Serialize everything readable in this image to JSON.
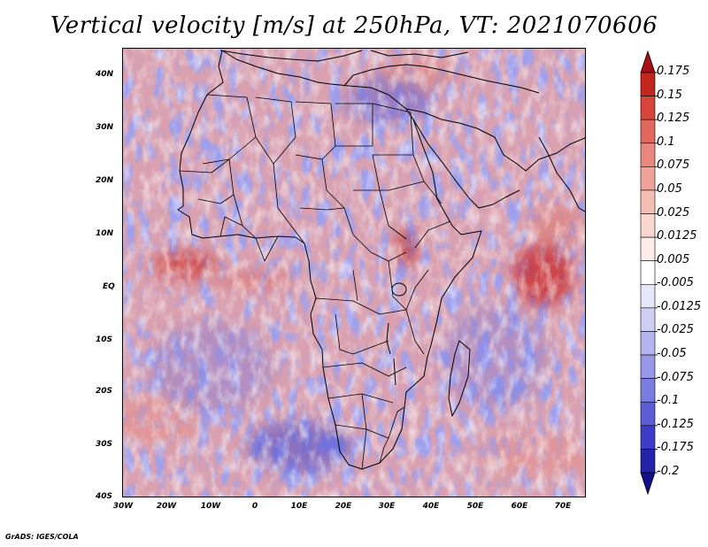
{
  "title": "Vertical velocity [m/s] at 250hPa, VT: 2021070606",
  "credit": "GrADS: IGES/COLA",
  "lat_labels": [
    "40N",
    "30N",
    "20N",
    "10N",
    "EQ",
    "10S",
    "20S",
    "30S",
    "40S"
  ],
  "lon_labels": [
    "30W",
    "20W",
    "10W",
    "0",
    "10E",
    "20E",
    "30E",
    "40E",
    "50E",
    "60E",
    "70E"
  ],
  "colorbar": {
    "levels": [
      "0.175",
      "0.15",
      "0.125",
      "0.1",
      "0.075",
      "0.05",
      "0.025",
      "0.0125",
      "0.005",
      "-0.005",
      "-0.0125",
      "-0.025",
      "-0.05",
      "-0.075",
      "-0.1",
      "-0.125",
      "-0.175",
      "-0.2"
    ],
    "colors": [
      "#a50f15",
      "#c2261d",
      "#d6453a",
      "#e1685e",
      "#e8887f",
      "#efa39b",
      "#f4bdb6",
      "#f8d6d1",
      "#fcecea",
      "#ffffff",
      "#e7e7fb",
      "#cfcff6",
      "#b4b4f0",
      "#9898e8",
      "#7b7be0",
      "#5c5cd5",
      "#3c3cc6",
      "#2424aa",
      "#10108a"
    ]
  },
  "colors": {
    "positive": "#d6453a",
    "negative": "#5c5cd5",
    "neutral": "#ffffff"
  }
}
